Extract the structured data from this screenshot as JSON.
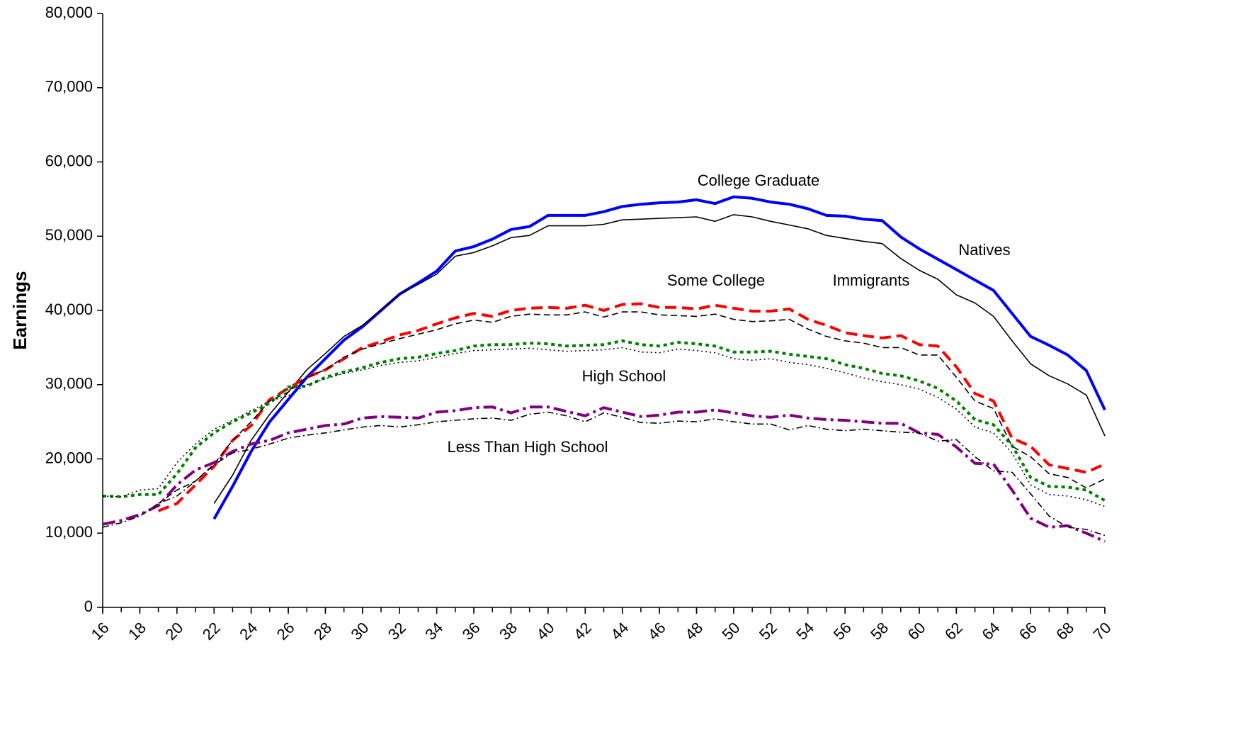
{
  "chart_data": {
    "type": "line",
    "y_label": "Earnings",
    "annotations": [
      "College Graduate",
      "Natives",
      "Immigrants",
      "Some College",
      "High School",
      "Less Than High School"
    ],
    "x": [
      16,
      17,
      18,
      19,
      20,
      21,
      22,
      23,
      24,
      25,
      26,
      27,
      28,
      29,
      30,
      31,
      32,
      33,
      34,
      35,
      36,
      37,
      38,
      39,
      40,
      41,
      42,
      43,
      44,
      45,
      46,
      47,
      48,
      49,
      50,
      51,
      52,
      53,
      54,
      55,
      56,
      57,
      58,
      59,
      60,
      61,
      62,
      63,
      64,
      65,
      66,
      67,
      68,
      69,
      70
    ],
    "xlim": [
      16,
      70
    ],
    "xticks": [
      16,
      18,
      20,
      22,
      24,
      26,
      28,
      30,
      32,
      34,
      36,
      38,
      40,
      42,
      44,
      46,
      48,
      50,
      52,
      54,
      56,
      58,
      60,
      62,
      64,
      66,
      68,
      70
    ],
    "ylim": [
      0,
      80000
    ],
    "yticks": [
      0,
      {
        "value": 10000,
        "label": "10,000"
      },
      {
        "value": 20000,
        "label": "20,000"
      },
      {
        "value": 30000,
        "label": "30,000"
      },
      {
        "value": 40000,
        "label": "40,000"
      },
      {
        "value": 50000,
        "label": "50,000"
      },
      {
        "value": 60000,
        "label": "60,000"
      },
      {
        "value": 70000,
        "label": "70,000"
      },
      {
        "value": 80000,
        "label": "80,000"
      }
    ],
    "grid": false,
    "series": [
      {
        "color": "#0000ff",
        "width": 4,
        "dash": "none",
        "values": [
          null,
          null,
          null,
          null,
          null,
          null,
          11900,
          16300,
          21000,
          25000,
          28000,
          31000,
          33500,
          36000,
          37800,
          40000,
          42200,
          43700,
          45300,
          48000,
          48600,
          49600,
          50900,
          51300,
          52800,
          52800,
          52800,
          53300,
          54000,
          54300,
          54500,
          54600,
          54900,
          54400,
          55300,
          55100,
          54600,
          54300,
          53700,
          52800,
          52700,
          52300,
          52100,
          49900,
          48300,
          46900,
          45500,
          44100,
          42700,
          39600,
          36500,
          35300,
          34000,
          31900,
          26600
        ]
      },
      {
        "color": "#000000",
        "width": 1.6,
        "dash": "none",
        "values": [
          null,
          null,
          null,
          null,
          null,
          null,
          14000,
          17800,
          22500,
          26000,
          29000,
          32000,
          34200,
          36500,
          38000,
          40100,
          42200,
          43500,
          44900,
          47300,
          47800,
          48700,
          49800,
          50100,
          51400,
          51400,
          51400,
          51600,
          52200,
          52300,
          52400,
          52500,
          52600,
          52000,
          52900,
          52600,
          52000,
          51500,
          51000,
          50100,
          49700,
          49300,
          49000,
          47000,
          45400,
          44200,
          42100,
          41000,
          39200,
          35900,
          32800,
          31200,
          30100,
          28600,
          23100
        ]
      },
      {
        "color": "#ff0000",
        "width": 4,
        "dash": "16,8",
        "values": [
          null,
          null,
          null,
          13000,
          14000,
          16500,
          19000,
          22500,
          24500,
          28000,
          29500,
          31000,
          32000,
          33500,
          35000,
          35800,
          36700,
          37300,
          38200,
          39000,
          39600,
          39200,
          40000,
          40300,
          40400,
          40300,
          40700,
          40000,
          40800,
          40900,
          40400,
          40400,
          40200,
          40700,
          40300,
          39900,
          39900,
          40200,
          38800,
          38000,
          37000,
          36600,
          36300,
          36600,
          35400,
          35200,
          32400,
          28800,
          27800,
          22800,
          21700,
          19200,
          18700,
          18200,
          19300
        ]
      },
      {
        "color": "#000000",
        "width": 1.6,
        "dash": "9,5",
        "values": [
          null,
          null,
          null,
          14000,
          15800,
          17000,
          19300,
          22500,
          25000,
          27800,
          29000,
          31000,
          32000,
          33700,
          34800,
          35500,
          36200,
          36800,
          37400,
          38200,
          38700,
          38400,
          39200,
          39500,
          39400,
          39400,
          39800,
          39100,
          39800,
          39800,
          39400,
          39300,
          39200,
          39500,
          38800,
          38500,
          38600,
          38800,
          37500,
          36500,
          35900,
          35600,
          35000,
          35000,
          34000,
          34000,
          31000,
          27800,
          26800,
          21700,
          20300,
          18000,
          17500,
          16100,
          17300
        ]
      },
      {
        "color": "#008000",
        "width": 4,
        "dash": "5,5",
        "values": [
          15000,
          14900,
          15200,
          15200,
          18000,
          21500,
          23500,
          25000,
          26200,
          27500,
          29700,
          29800,
          31000,
          31700,
          32300,
          33000,
          33500,
          33700,
          34200,
          34600,
          35200,
          35400,
          35400,
          35600,
          35500,
          35200,
          35300,
          35400,
          35900,
          35400,
          35200,
          35700,
          35500,
          35200,
          34400,
          34400,
          34500,
          34100,
          33800,
          33500,
          32700,
          32200,
          31500,
          31200,
          30500,
          29500,
          27800,
          25300,
          24600,
          21800,
          17500,
          16300,
          16200,
          15800,
          14400
        ]
      },
      {
        "color": "#000000",
        "width": 1.6,
        "dash": "2,4",
        "values": [
          15000,
          14900,
          15800,
          16000,
          19500,
          22000,
          24000,
          25200,
          26500,
          27800,
          28500,
          30000,
          30800,
          31500,
          32000,
          32600,
          33000,
          33200,
          33700,
          34200,
          34600,
          34700,
          34800,
          34900,
          34700,
          34500,
          34600,
          34700,
          35000,
          34400,
          34300,
          34800,
          34600,
          34300,
          33500,
          33300,
          33500,
          33000,
          32700,
          32200,
          31600,
          30900,
          30400,
          30000,
          29400,
          28300,
          26700,
          24300,
          23500,
          20800,
          16500,
          15200,
          15000,
          14500,
          13600
        ]
      },
      {
        "color": "#800080",
        "width": 4,
        "dash": "18,6,4,6",
        "values": [
          11200,
          11700,
          12500,
          13700,
          16500,
          18500,
          19500,
          21000,
          22000,
          22500,
          23500,
          24000,
          24500,
          24700,
          25500,
          25700,
          25600,
          25500,
          26300,
          26500,
          26900,
          27000,
          26200,
          27000,
          27000,
          26400,
          25800,
          26900,
          26300,
          25700,
          25900,
          26300,
          26300,
          26600,
          26200,
          25800,
          25600,
          25900,
          25500,
          25300,
          25200,
          25000,
          24800,
          24800,
          23500,
          23300,
          21600,
          19400,
          19300,
          15800,
          12000,
          10800,
          11000,
          10000,
          8900
        ]
      },
      {
        "color": "#000000",
        "width": 1.6,
        "dash": "9,4,2,4",
        "values": [
          10800,
          11400,
          12300,
          14000,
          15000,
          17000,
          19200,
          20800,
          21300,
          22000,
          22800,
          23200,
          23500,
          23900,
          24300,
          24500,
          24300,
          24600,
          25000,
          25200,
          25400,
          25500,
          25200,
          26000,
          26300,
          25800,
          25000,
          26200,
          25600,
          24900,
          24800,
          25100,
          25000,
          25400,
          25000,
          24700,
          24700,
          23900,
          24500,
          24000,
          23800,
          24000,
          23800,
          23600,
          23500,
          22400,
          22600,
          20300,
          18400,
          18200,
          15300,
          12300,
          10800,
          10500,
          9700
        ]
      }
    ]
  }
}
